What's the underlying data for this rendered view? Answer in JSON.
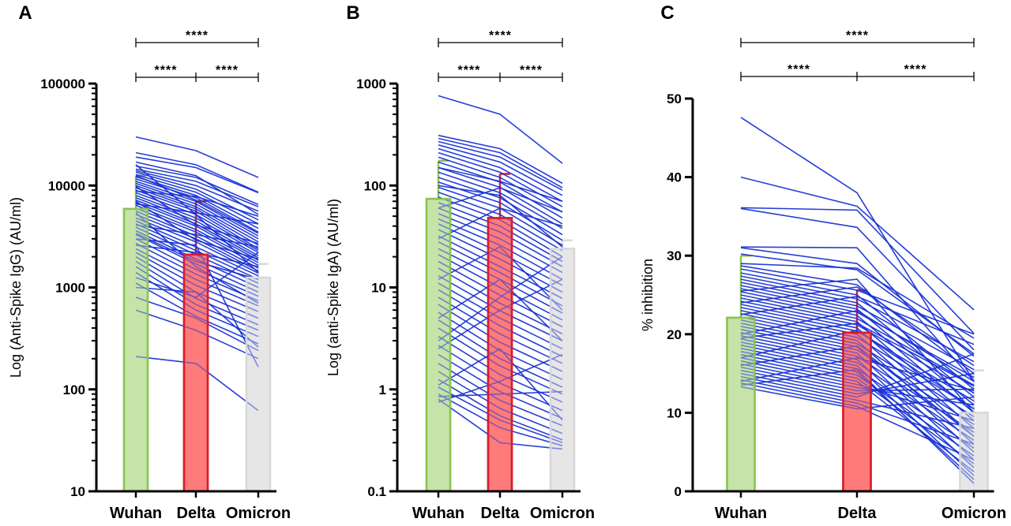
{
  "chart_data": [
    {
      "panel": "A",
      "type": "bar",
      "yscale": "log",
      "ylabel": "Log (Anti-Spike IgG) (AU/ml)",
      "ylim": [
        10,
        100000
      ],
      "yticks": [
        10,
        100,
        1000,
        10000,
        100000
      ],
      "ytick_labels": [
        "10",
        "100",
        "1000",
        "10000",
        "100000"
      ],
      "categories": [
        "Wuhan",
        "Delta",
        "Omicron"
      ],
      "bar_colors": [
        "#c6e3a8",
        "#ff7b7b",
        "#e6e6e6"
      ],
      "bar_edge_colors": [
        "#8cc455",
        "#d81d2a",
        "#d9d9d9"
      ],
      "values": [
        5900,
        2100,
        1250
      ],
      "error_upper": [
        12500,
        7000,
        1700
      ],
      "series_color": "#1a34d6",
      "paired_series": [
        [
          30000,
          22000,
          12000
        ],
        [
          21000,
          16000,
          8600
        ],
        [
          19000,
          15000,
          8500
        ],
        [
          17000,
          12500,
          5200
        ],
        [
          15500,
          12000,
          6500
        ],
        [
          14500,
          11000,
          6200
        ],
        [
          14000,
          10000,
          5600
        ],
        [
          13500,
          9200,
          4600
        ],
        [
          12800,
          8600,
          4200
        ],
        [
          12200,
          8000,
          3800
        ],
        [
          11600,
          7600,
          3500
        ],
        [
          11000,
          7000,
          3200
        ],
        [
          10500,
          6600,
          3000
        ],
        [
          10000,
          6200,
          2800
        ],
        [
          9500,
          5900,
          2600
        ],
        [
          9000,
          5600,
          2400
        ],
        [
          8500,
          5200,
          2300
        ],
        [
          8000,
          4800,
          2200
        ],
        [
          7600,
          4500,
          2050
        ],
        [
          7200,
          4200,
          1950
        ],
        [
          6800,
          4000,
          1850
        ],
        [
          6400,
          3700,
          1750
        ],
        [
          6000,
          3500,
          1650
        ],
        [
          5600,
          3200,
          1550
        ],
        [
          5200,
          3000,
          1450
        ],
        [
          4800,
          2800,
          1380
        ],
        [
          4500,
          2500,
          1300
        ],
        [
          4200,
          2300,
          1200
        ],
        [
          3900,
          2100,
          1100
        ],
        [
          3600,
          1900,
          1000
        ],
        [
          3300,
          1700,
          900
        ],
        [
          3000,
          1500,
          820
        ],
        [
          2700,
          1350,
          740
        ],
        [
          2400,
          1200,
          660
        ],
        [
          2200,
          1050,
          580
        ],
        [
          2000,
          900,
          500
        ],
        [
          1800,
          780,
          430
        ],
        [
          1600,
          680,
          380
        ],
        [
          1400,
          600,
          330
        ],
        [
          1250,
          800,
          2200
        ],
        [
          1100,
          520,
          280
        ],
        [
          1000,
          900,
          260
        ],
        [
          800,
          500,
          240
        ],
        [
          600,
          380,
          200
        ],
        [
          2600,
          2200,
          1600
        ],
        [
          3400,
          1800,
          1200
        ],
        [
          4100,
          3300,
          2500
        ],
        [
          6600,
          5400,
          4200
        ],
        [
          8800,
          7800,
          5000
        ],
        [
          12500,
          7200,
          3400
        ],
        [
          210,
          180,
          62
        ],
        [
          16000,
          5200,
          1400
        ],
        [
          5400,
          1600,
          700
        ],
        [
          3000,
          2600,
          166
        ],
        [
          7000,
          2900,
          1900
        ],
        [
          9800,
          4100,
          2700
        ]
      ]
    },
    {
      "panel": "B",
      "type": "bar",
      "yscale": "log",
      "ylabel": "Log (anti-Spike IgA) (AU/ml)",
      "ylim": [
        0.1,
        1000
      ],
      "yticks": [
        0.1,
        1,
        10,
        100,
        1000
      ],
      "ytick_labels": [
        "0.1",
        "1",
        "10",
        "100",
        "1000"
      ],
      "categories": [
        "Wuhan",
        "Delta",
        "Omicron"
      ],
      "bar_colors": [
        "#c6e3a8",
        "#ff7b7b",
        "#e6e6e6"
      ],
      "bar_edge_colors": [
        "#8cc455",
        "#d81d2a",
        "#d9d9d9"
      ],
      "values": [
        74,
        48,
        24
      ],
      "error_upper": [
        175,
        130,
        29
      ],
      "series_color": "#1a34d6",
      "paired_series": [
        [
          760,
          500,
          165
        ],
        [
          310,
          230,
          105
        ],
        [
          290,
          210,
          95
        ],
        [
          270,
          190,
          90
        ],
        [
          250,
          170,
          80
        ],
        [
          230,
          150,
          70
        ],
        [
          210,
          135,
          62
        ],
        [
          190,
          120,
          55
        ],
        [
          170,
          108,
          48
        ],
        [
          150,
          96,
          42
        ],
        [
          135,
          85,
          38
        ],
        [
          120,
          76,
          33
        ],
        [
          108,
          68,
          29
        ],
        [
          96,
          60,
          26
        ],
        [
          86,
          52,
          23
        ],
        [
          77,
          46,
          20
        ],
        [
          68,
          40,
          18
        ],
        [
          60,
          35,
          16
        ],
        [
          53,
          30,
          14
        ],
        [
          47,
          26,
          12
        ],
        [
          42,
          22,
          10.5
        ],
        [
          37,
          19,
          9
        ],
        [
          32,
          16,
          7.8
        ],
        [
          28,
          14,
          6.6
        ],
        [
          24,
          12,
          5.6
        ],
        [
          21,
          10,
          4.8
        ],
        [
          18,
          8.4,
          4.1
        ],
        [
          15.5,
          7,
          3.5
        ],
        [
          13,
          5.9,
          3
        ],
        [
          11,
          5,
          2.5
        ],
        [
          9.5,
          4.2,
          2.1
        ],
        [
          8,
          3.5,
          1.8
        ],
        [
          6.8,
          2.9,
          1.5
        ],
        [
          5.7,
          2.4,
          1.25
        ],
        [
          4.8,
          2,
          1.05
        ],
        [
          4,
          1.7,
          0.9
        ],
        [
          3.3,
          1.4,
          0.75
        ],
        [
          2.7,
          1.15,
          0.62
        ],
        [
          2.2,
          0.95,
          0.52
        ],
        [
          1.8,
          0.78,
          0.44
        ],
        [
          1.5,
          0.65,
          0.37
        ],
        [
          1.25,
          0.55,
          0.32
        ],
        [
          1.05,
          0.5,
          0.3
        ],
        [
          0.9,
          0.42,
          0.28
        ],
        [
          0.8,
          0.3,
          0.26
        ],
        [
          0.75,
          1.2,
          2.2
        ],
        [
          1.1,
          2.5,
          0.5
        ],
        [
          2.5,
          6,
          12
        ],
        [
          5,
          12,
          3
        ],
        [
          12,
          25,
          6
        ],
        [
          30,
          60,
          40
        ],
        [
          60,
          95,
          55
        ],
        [
          100,
          80,
          25
        ],
        [
          150,
          110,
          70
        ],
        [
          3,
          8,
          20
        ],
        [
          0.85,
          0.9,
          0.95
        ]
      ]
    },
    {
      "panel": "C",
      "type": "bar",
      "yscale": "linear",
      "ylabel": "% inhibition",
      "ylim": [
        0,
        50
      ],
      "yticks": [
        0,
        10,
        20,
        30,
        40,
        50
      ],
      "ytick_labels": [
        "0",
        "10",
        "20",
        "30",
        "40",
        "50"
      ],
      "categories": [
        "Wuhan",
        "Delta",
        "Omicron"
      ],
      "bar_colors": [
        "#c6e3a8",
        "#ff7b7b",
        "#e6e6e6"
      ],
      "bar_edge_colors": [
        "#8cc455",
        "#d81d2a",
        "#d9d9d9"
      ],
      "values": [
        22.1,
        20.2,
        10
      ],
      "error_upper": [
        30,
        25.6,
        15.4
      ],
      "series_color": "#1a34d6",
      "paired_series": [
        [
          47.6,
          38,
          14
        ],
        [
          40,
          36.3,
          23.1
        ],
        [
          36.1,
          35.8,
          20.1
        ],
        [
          36,
          33.6,
          18
        ],
        [
          31.1,
          31,
          14
        ],
        [
          30.2,
          28.2,
          17.5
        ],
        [
          28.7,
          26.3,
          15
        ],
        [
          28.3,
          25.6,
          20
        ],
        [
          27.8,
          25,
          13
        ],
        [
          27.4,
          24.5,
          16.5
        ],
        [
          27,
          24,
          12
        ],
        [
          26.6,
          23.6,
          15.5
        ],
        [
          26.2,
          23.2,
          11
        ],
        [
          25.8,
          22.8,
          14.5
        ],
        [
          25.4,
          22.4,
          10
        ],
        [
          25,
          22,
          13.5
        ],
        [
          24.6,
          21.6,
          9
        ],
        [
          24.2,
          21.2,
          12.5
        ],
        [
          23.8,
          20.8,
          8
        ],
        [
          23.4,
          20.4,
          11.5
        ],
        [
          23,
          20,
          7
        ],
        [
          22.6,
          19.6,
          10.5
        ],
        [
          22.2,
          19.2,
          6
        ],
        [
          21.8,
          18.8,
          9.5
        ],
        [
          21.4,
          18.4,
          5
        ],
        [
          21,
          18,
          8.5
        ],
        [
          20.6,
          17.6,
          4
        ],
        [
          20.2,
          17.2,
          7.5
        ],
        [
          19.8,
          16.8,
          3
        ],
        [
          19.4,
          16.4,
          6.5
        ],
        [
          19,
          16,
          2
        ],
        [
          18.6,
          15.6,
          5.5
        ],
        [
          18.2,
          15.2,
          1.5
        ],
        [
          17.8,
          14.8,
          4.5
        ],
        [
          17.4,
          14.4,
          3.5
        ],
        [
          17,
          14,
          2.5
        ],
        [
          16.6,
          13.6,
          9
        ],
        [
          16.2,
          13.2,
          11
        ],
        [
          15.8,
          12.8,
          13
        ],
        [
          15.4,
          12.4,
          15
        ],
        [
          15,
          12,
          17.5
        ],
        [
          14.6,
          11.6,
          8
        ],
        [
          14.2,
          11.2,
          6
        ],
        [
          13.8,
          10.8,
          4
        ],
        [
          13.3,
          10.5,
          12
        ],
        [
          29,
          28.4,
          19.5
        ],
        [
          24,
          26,
          16
        ],
        [
          20,
          23,
          14
        ],
        [
          17,
          20.5,
          10.5
        ],
        [
          14,
          17,
          12.8
        ],
        [
          31,
          29,
          17.2
        ],
        [
          22.5,
          24.8,
          18.7
        ],
        [
          19.5,
          21.4,
          13.4
        ],
        [
          16,
          18.5,
          7
        ],
        [
          25.5,
          27,
          10
        ],
        [
          13.5,
          15.5,
          1
        ]
      ]
    }
  ],
  "panels": [
    {
      "letter": "A",
      "categories": [
        "Wuhan",
        "Delta",
        "Omicron"
      ],
      "sig": {
        "left": "****",
        "right": "****",
        "top": "****"
      }
    },
    {
      "letter": "B",
      "categories": [
        "Wuhan",
        "Delta",
        "Omicron"
      ],
      "sig": {
        "left": "****",
        "right": "****",
        "top": "****"
      }
    },
    {
      "letter": "C",
      "categories": [
        "Wuhan",
        "Delta",
        "Omicron"
      ],
      "sig": {
        "left": "****",
        "right": "****",
        "top": "****"
      }
    }
  ]
}
